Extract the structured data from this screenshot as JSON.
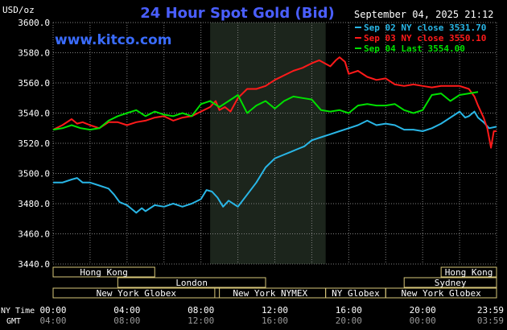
{
  "header": {
    "title": "24 Hour Spot Gold (Bid)",
    "unit": "USD/oz",
    "datetime": "September 04, 2025 21:12",
    "website": "www.kitco.com"
  },
  "colors": {
    "background": "#000000",
    "title": "#4a5fff",
    "website": "#3a6cff",
    "grid": "#808080",
    "sep02": "#29b6e6",
    "sep03": "#ff1a1a",
    "sep04": "#00e000",
    "shade": "#1c251c",
    "session_box": "#d8c77a"
  },
  "legend": [
    {
      "label": "Sep 02 NY close 3531.70",
      "color": "#29b6e6"
    },
    {
      "label": "Sep 03 NY close 3550.10",
      "color": "#ff1a1a"
    },
    {
      "label": "Sep 04 Last 3554.00",
      "color": "#00e000"
    }
  ],
  "sessions": [
    {
      "label": "Hong Kong",
      "start_h": 0,
      "end_h": 5.5,
      "row": 0
    },
    {
      "label": "London",
      "start_h": 3.5,
      "end_h": 11.5,
      "row": 1
    },
    {
      "label": "New York Globex",
      "start_h": 0,
      "end_h": 9.0,
      "row": 2
    },
    {
      "label": "New York NYMEX",
      "start_h": 8.75,
      "end_h": 14.75,
      "row": 2
    },
    {
      "label": "NY Globex",
      "start_h": 14.75,
      "end_h": 18.0,
      "row": 2
    },
    {
      "label": "Hong Kong",
      "start_h": 21.0,
      "end_h": 24.0,
      "row": 0
    },
    {
      "label": "Sydney",
      "start_h": 19.0,
      "end_h": 24.0,
      "row": 1
    },
    {
      "label": "New York Globex",
      "start_h": 18.0,
      "end_h": 24.0,
      "row": 2
    }
  ],
  "footer": {
    "ny_label": "NY Time",
    "gmt_label": "GMT",
    "ny_ticks": [
      "00:00",
      "04:00",
      "08:00",
      "12:00",
      "16:00",
      "20:00",
      "23:59"
    ],
    "gmt_ticks": [
      "04:00",
      "08:00",
      "12:00",
      "16:00",
      "20:00",
      "00:00",
      "03:59"
    ]
  },
  "chart_data": {
    "type": "line",
    "title": "24 Hour Spot Gold (Bid)",
    "ylabel": "USD/oz",
    "x_unit": "NY time (hours)",
    "xlim": [
      0,
      24
    ],
    "ylim": [
      3440,
      3600
    ],
    "yticks": [
      "3600.0",
      "3580.0",
      "3560.0",
      "3540.0",
      "3520.0",
      "3500.0",
      "3480.0",
      "3460.0",
      "3440.0"
    ],
    "grid": true,
    "legend_position": "top-right",
    "shaded_hours": [
      8.5,
      14.75
    ],
    "series": [
      {
        "name": "Sep 02 NY close 3531.70",
        "color": "#29b6e6",
        "points": [
          [
            0,
            3494
          ],
          [
            0.5,
            3494
          ],
          [
            1.0,
            3496
          ],
          [
            1.3,
            3497
          ],
          [
            1.6,
            3494
          ],
          [
            2.0,
            3494
          ],
          [
            2.5,
            3492
          ],
          [
            3.0,
            3490
          ],
          [
            3.3,
            3486
          ],
          [
            3.6,
            3481
          ],
          [
            4.0,
            3479
          ],
          [
            4.3,
            3476
          ],
          [
            4.5,
            3474
          ],
          [
            4.8,
            3477
          ],
          [
            5.0,
            3475
          ],
          [
            5.5,
            3479
          ],
          [
            6.0,
            3478
          ],
          [
            6.5,
            3480
          ],
          [
            7.0,
            3478
          ],
          [
            7.5,
            3480
          ],
          [
            8.0,
            3483
          ],
          [
            8.3,
            3489
          ],
          [
            8.6,
            3488
          ],
          [
            8.9,
            3484
          ],
          [
            9.2,
            3478
          ],
          [
            9.5,
            3482
          ],
          [
            10.0,
            3478
          ],
          [
            10.5,
            3486
          ],
          [
            11.0,
            3494
          ],
          [
            11.5,
            3504
          ],
          [
            12.0,
            3510
          ],
          [
            12.4,
            3512
          ],
          [
            12.8,
            3514
          ],
          [
            13.2,
            3516
          ],
          [
            13.6,
            3518
          ],
          [
            14.0,
            3522
          ],
          [
            14.5,
            3524
          ],
          [
            15.0,
            3526
          ],
          [
            15.5,
            3528
          ],
          [
            16.0,
            3530
          ],
          [
            16.5,
            3532
          ],
          [
            17.0,
            3535
          ],
          [
            17.5,
            3532
          ],
          [
            18.0,
            3533
          ],
          [
            18.5,
            3532
          ],
          [
            19.0,
            3529
          ],
          [
            19.5,
            3529
          ],
          [
            20.0,
            3528
          ],
          [
            20.5,
            3530
          ],
          [
            21.0,
            3533
          ],
          [
            21.5,
            3537
          ],
          [
            22.0,
            3541
          ],
          [
            22.3,
            3537
          ],
          [
            22.5,
            3538
          ],
          [
            22.8,
            3541
          ],
          [
            23.0,
            3537
          ],
          [
            23.3,
            3534
          ],
          [
            23.6,
            3530
          ],
          [
            24.0,
            3531
          ]
        ]
      },
      {
        "name": "Sep 03 NY close 3550.10",
        "color": "#ff1a1a",
        "points": [
          [
            0,
            3529
          ],
          [
            0.5,
            3532
          ],
          [
            1.0,
            3536
          ],
          [
            1.3,
            3533
          ],
          [
            1.6,
            3534
          ],
          [
            2.0,
            3532
          ],
          [
            2.5,
            3530
          ],
          [
            3.0,
            3534
          ],
          [
            3.5,
            3534
          ],
          [
            4.0,
            3532
          ],
          [
            4.5,
            3534
          ],
          [
            5.0,
            3535
          ],
          [
            5.5,
            3537
          ],
          [
            6.0,
            3538
          ],
          [
            6.5,
            3535
          ],
          [
            7.0,
            3537
          ],
          [
            7.5,
            3538
          ],
          [
            8.0,
            3541
          ],
          [
            8.5,
            3544
          ],
          [
            8.8,
            3548
          ],
          [
            9.0,
            3542
          ],
          [
            9.3,
            3544
          ],
          [
            9.6,
            3541
          ],
          [
            10.0,
            3550
          ],
          [
            10.5,
            3556
          ],
          [
            11.0,
            3556
          ],
          [
            11.5,
            3558
          ],
          [
            12.0,
            3562
          ],
          [
            12.5,
            3565
          ],
          [
            13.0,
            3568
          ],
          [
            13.5,
            3570
          ],
          [
            14.0,
            3573
          ],
          [
            14.4,
            3575
          ],
          [
            14.7,
            3573
          ],
          [
            15.0,
            3571
          ],
          [
            15.3,
            3575
          ],
          [
            15.5,
            3577
          ],
          [
            15.8,
            3574
          ],
          [
            16.0,
            3566
          ],
          [
            16.5,
            3568
          ],
          [
            17.0,
            3564
          ],
          [
            17.5,
            3562
          ],
          [
            18.0,
            3563
          ],
          [
            18.5,
            3559
          ],
          [
            19.0,
            3558
          ],
          [
            19.5,
            3559
          ],
          [
            20.0,
            3558
          ],
          [
            20.5,
            3557
          ],
          [
            21.0,
            3558
          ],
          [
            21.5,
            3558
          ],
          [
            22.0,
            3558
          ],
          [
            22.5,
            3556
          ],
          [
            22.8,
            3551
          ],
          [
            23.0,
            3545
          ],
          [
            23.3,
            3537
          ],
          [
            23.5,
            3530
          ],
          [
            23.7,
            3517
          ],
          [
            23.85,
            3528
          ],
          [
            24.0,
            3528
          ]
        ]
      },
      {
        "name": "Sep 04 Last 3554.00",
        "color": "#00e000",
        "points": [
          [
            0,
            3529
          ],
          [
            0.5,
            3530
          ],
          [
            1.0,
            3532
          ],
          [
            1.5,
            3530
          ],
          [
            2.0,
            3529
          ],
          [
            2.5,
            3530
          ],
          [
            3.0,
            3535
          ],
          [
            3.5,
            3538
          ],
          [
            4.0,
            3540
          ],
          [
            4.5,
            3542
          ],
          [
            5.0,
            3538
          ],
          [
            5.5,
            3541
          ],
          [
            6.0,
            3539
          ],
          [
            6.5,
            3538
          ],
          [
            7.0,
            3540
          ],
          [
            7.5,
            3538
          ],
          [
            8.0,
            3546
          ],
          [
            8.5,
            3548
          ],
          [
            9.0,
            3544
          ],
          [
            9.5,
            3548
          ],
          [
            10.0,
            3552
          ],
          [
            10.5,
            3540
          ],
          [
            11.0,
            3545
          ],
          [
            11.5,
            3548
          ],
          [
            12.0,
            3543
          ],
          [
            12.5,
            3548
          ],
          [
            13.0,
            3551
          ],
          [
            13.5,
            3550
          ],
          [
            14.0,
            3549
          ],
          [
            14.5,
            3542
          ],
          [
            15.0,
            3541
          ],
          [
            15.5,
            3542
          ],
          [
            16.0,
            3540
          ],
          [
            16.5,
            3545
          ],
          [
            17.0,
            3546
          ],
          [
            17.5,
            3545
          ],
          [
            18.0,
            3545
          ],
          [
            18.5,
            3546
          ],
          [
            19.0,
            3542
          ],
          [
            19.5,
            3540
          ],
          [
            20.0,
            3542
          ],
          [
            20.5,
            3552
          ],
          [
            21.0,
            3553
          ],
          [
            21.5,
            3548
          ],
          [
            22.0,
            3552
          ],
          [
            22.5,
            3553
          ],
          [
            23.0,
            3554
          ]
        ]
      }
    ]
  }
}
